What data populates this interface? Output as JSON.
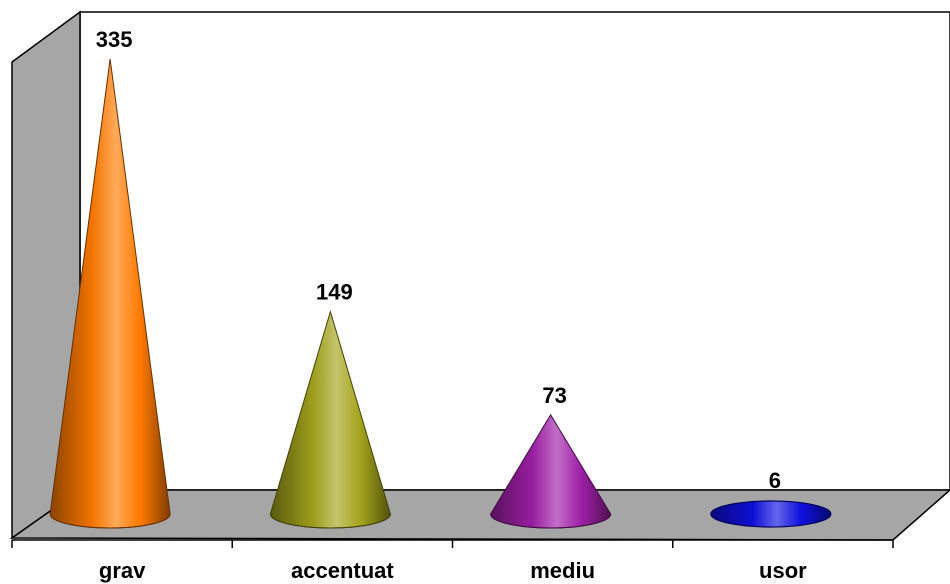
{
  "chart_data": {
    "type": "bar",
    "bar_shape": "cone",
    "style": "3d",
    "categories": [
      "grav",
      "accentuat",
      "mediu",
      "usor"
    ],
    "values": [
      335,
      149,
      73,
      6
    ],
    "data_labels": [
      "335",
      "149",
      "73",
      "6"
    ],
    "colors": [
      "#FF7A00",
      "#A4A41C",
      "#A020A8",
      "#1010E0"
    ],
    "ylim": [
      0,
      335
    ],
    "grid": false,
    "legend": "none",
    "wall_color": "#A6A6A6",
    "floor_color": "#A6A6A6"
  }
}
